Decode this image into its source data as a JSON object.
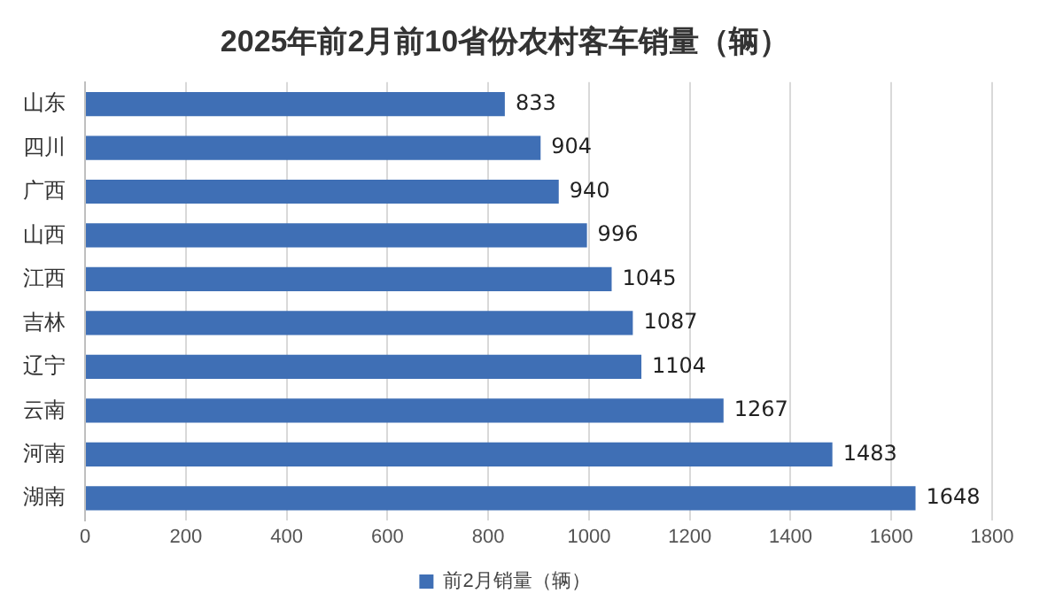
{
  "chart_data": {
    "type": "bar",
    "orientation": "horizontal",
    "title": "2025年前2月前10省份农村客车销量（辆）",
    "categories": [
      "山东",
      "四川",
      "广西",
      "山西",
      "江西",
      "吉林",
      "辽宁",
      "云南",
      "河南",
      "湖南"
    ],
    "series": [
      {
        "name": "前2月销量（辆）",
        "color": "#3f6fb5",
        "values": [
          833,
          904,
          940,
          996,
          1045,
          1087,
          1104,
          1267,
          1483,
          1648
        ]
      }
    ],
    "xlim": [
      0,
      1800
    ],
    "xticks": [
      0,
      200,
      400,
      600,
      800,
      1000,
      1200,
      1400,
      1600,
      1800
    ],
    "grid": "x",
    "legend": "bottom",
    "data_labels": true
  }
}
